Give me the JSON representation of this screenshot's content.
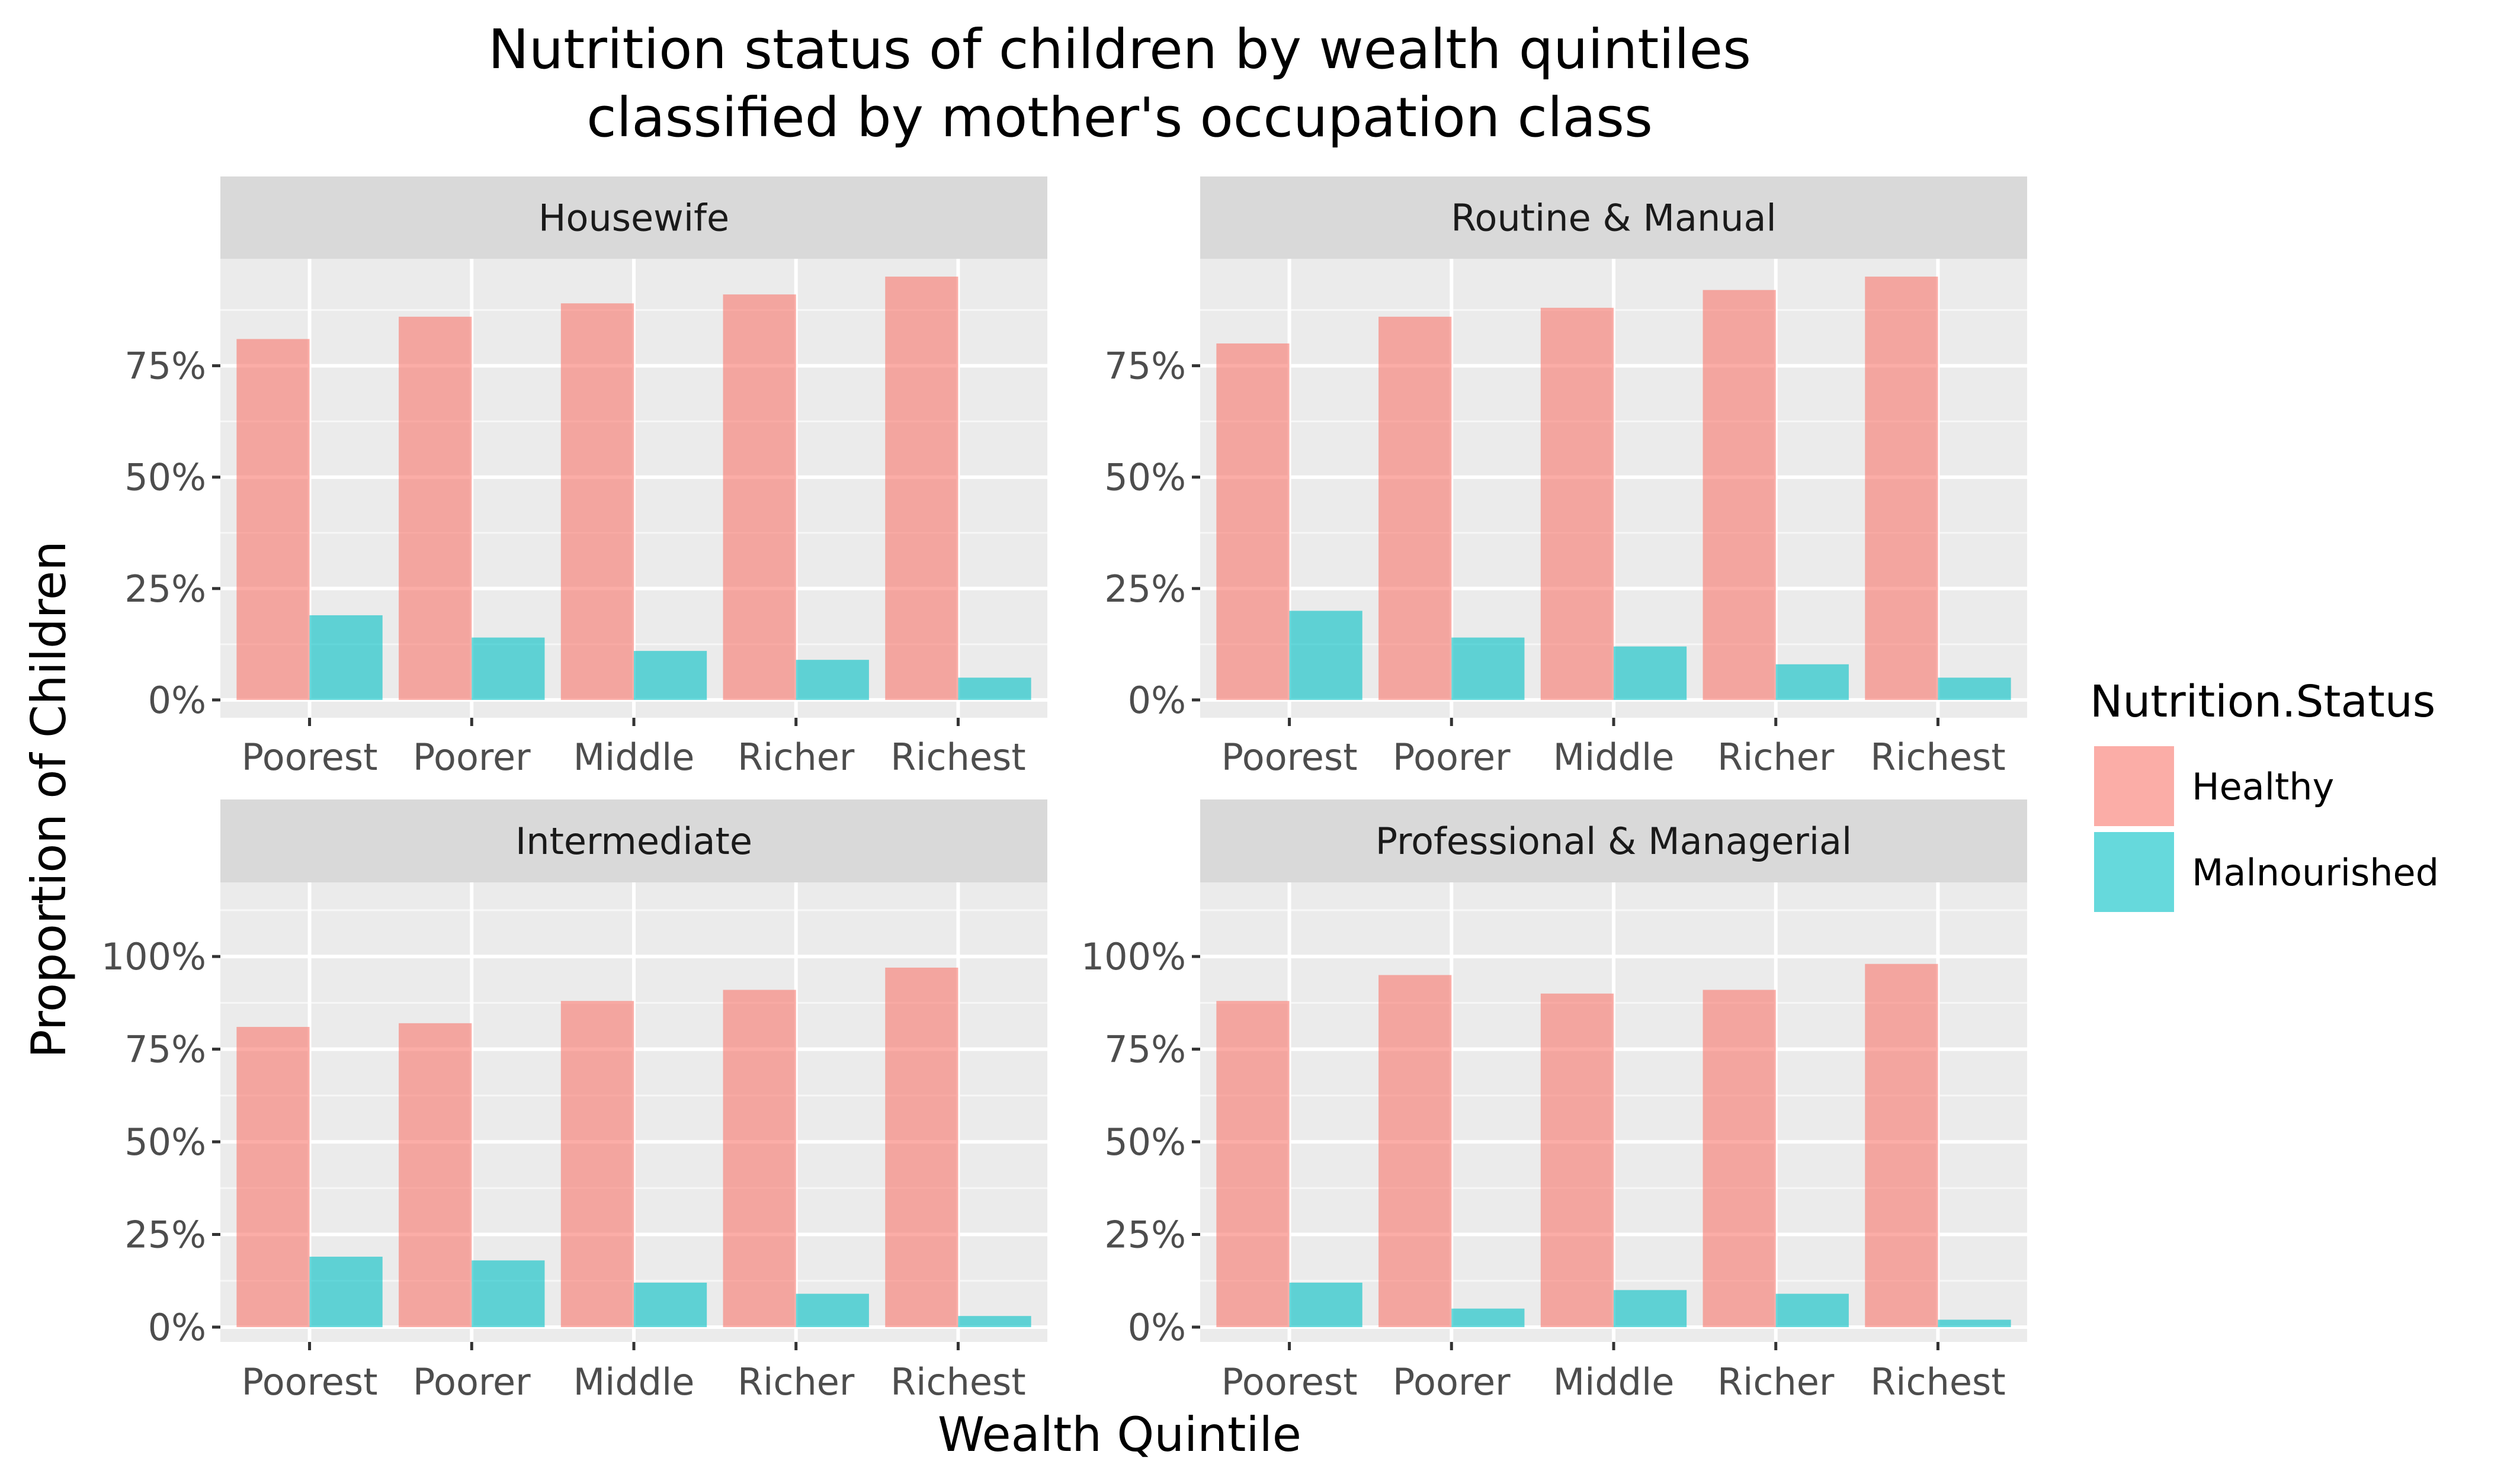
{
  "chart_data": {
    "type": "bar",
    "title": "Nutrition status of children by wealth quintiles",
    "subtitle": "classified by mother's occupation class",
    "xlabel": "Wealth Quintile",
    "ylabel": "Proportion of Children",
    "categories": [
      "Poorest",
      "Poorer",
      "Middle",
      "Richer",
      "Richest"
    ],
    "legend": {
      "title": "Nutrition.Status",
      "position": "right",
      "entries": [
        {
          "name": "Healthy",
          "color": "#F8766D"
        },
        {
          "name": "Malnourished",
          "color": "#00BFC4"
        }
      ]
    },
    "grid": true,
    "facet_rows": [
      {
        "ylim": [
          -0.04,
          0.99
        ],
        "ticks": [
          0,
          0.25,
          0.5,
          0.75
        ],
        "tick_labels": [
          "0%",
          "25%",
          "50%",
          "75%"
        ]
      },
      {
        "ylim": [
          -0.04,
          1.2
        ],
        "ticks": [
          0,
          0.25,
          0.5,
          0.75,
          1.0
        ],
        "tick_labels": [
          "0%",
          "25%",
          "50%",
          "75%",
          "100%"
        ]
      }
    ],
    "panels": [
      {
        "label": "Housewife",
        "row": 0,
        "col": 0,
        "series": [
          {
            "name": "Healthy",
            "values": [
              0.81,
              0.86,
              0.89,
              0.91,
              0.95
            ]
          },
          {
            "name": "Malnourished",
            "values": [
              0.19,
              0.14,
              0.11,
              0.09,
              0.05
            ]
          }
        ]
      },
      {
        "label": "Routine & Manual",
        "row": 0,
        "col": 1,
        "series": [
          {
            "name": "Healthy",
            "values": [
              0.8,
              0.86,
              0.88,
              0.92,
              0.95
            ]
          },
          {
            "name": "Malnourished",
            "values": [
              0.2,
              0.14,
              0.12,
              0.08,
              0.05
            ]
          }
        ]
      },
      {
        "label": "Intermediate",
        "row": 1,
        "col": 0,
        "series": [
          {
            "name": "Healthy",
            "values": [
              0.81,
              0.82,
              0.88,
              0.91,
              0.97
            ]
          },
          {
            "name": "Malnourished",
            "values": [
              0.19,
              0.18,
              0.12,
              0.09,
              0.03
            ]
          }
        ]
      },
      {
        "label": "Professional & Managerial",
        "row": 1,
        "col": 1,
        "series": [
          {
            "name": "Healthy",
            "values": [
              0.88,
              0.95,
              0.9,
              0.91,
              0.98
            ]
          },
          {
            "name": "Malnourished",
            "values": [
              0.12,
              0.05,
              0.1,
              0.09,
              0.02
            ]
          }
        ]
      }
    ]
  }
}
